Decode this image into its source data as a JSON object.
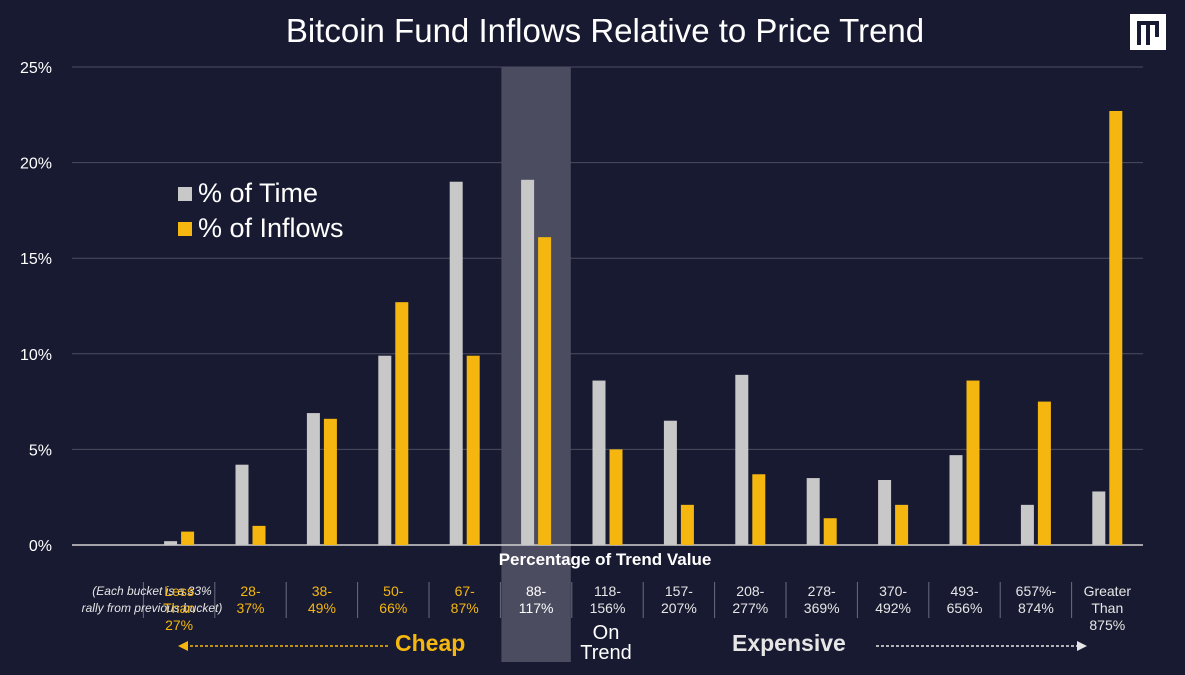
{
  "title": "Bitcoin Fund Inflows Relative to Price Trend",
  "chart_data": {
    "type": "bar",
    "title": "Bitcoin Fund Inflows Relative to Price Trend",
    "xlabel": "Percentage of Trend Value",
    "ylabel": "",
    "ylim": [
      0,
      25
    ],
    "yticks": [
      "0%",
      "5%",
      "10%",
      "15%",
      "20%",
      "25%"
    ],
    "grid": true,
    "legend_position": "upper-left",
    "categories": [
      "(Each bucket is a 33% rally from previous bucket)",
      "Less Than 27%",
      "28- 37%",
      "38- 49%",
      "50- 66%",
      "67- 87%",
      "88- 117%",
      "118- 156%",
      "157- 207%",
      "208- 277%",
      "278- 369%",
      "370- 492%",
      "493- 656%",
      "657%- 874%",
      "Greater Than 875%"
    ],
    "series": [
      {
        "name": "% of Time",
        "color": "#c8c8c8",
        "values": [
          0,
          0.2,
          4.2,
          6.9,
          9.9,
          19.0,
          19.1,
          8.6,
          6.5,
          8.9,
          3.5,
          3.4,
          4.7,
          2.1,
          2.8
        ]
      },
      {
        "name": "% of Inflows",
        "color": "#f5b70f",
        "values": [
          0,
          0.7,
          1.0,
          6.6,
          12.7,
          9.9,
          16.1,
          5.0,
          2.1,
          3.7,
          1.4,
          2.1,
          8.6,
          7.5,
          22.7
        ]
      }
    ],
    "highlight_category": "88- 117%",
    "annotations": [
      "Cheap",
      "On Trend",
      "Expensive"
    ]
  },
  "axis": {
    "note_line1": "(Each bucket is a 33%",
    "note_line2": "rally from previous bucket)"
  },
  "labels": [
    {
      "text": "Less\nThan 27%",
      "tone": "cheap"
    },
    {
      "text": "28-\n37%",
      "tone": "cheap"
    },
    {
      "text": "38-\n49%",
      "tone": "cheap"
    },
    {
      "text": "50-\n66%",
      "tone": "cheap"
    },
    {
      "text": "67-\n87%",
      "tone": "cheap"
    },
    {
      "text": "88-\n117%",
      "tone": "ontrend"
    },
    {
      "text": "118-\n156%",
      "tone": "neutral"
    },
    {
      "text": "157-\n207%",
      "tone": "neutral"
    },
    {
      "text": "208-\n277%",
      "tone": "neutral"
    },
    {
      "text": "278-\n369%",
      "tone": "neutral"
    },
    {
      "text": "370-\n492%",
      "tone": "neutral"
    },
    {
      "text": "493-\n656%",
      "tone": "neutral"
    },
    {
      "text": "657%-\n874%",
      "tone": "neutral"
    },
    {
      "text": "Greater\nThan 875%",
      "tone": "neutral"
    }
  ],
  "zones": {
    "cheap": "Cheap",
    "expensive": "Expensive",
    "on_trend": "On\nTrend"
  },
  "colors": {
    "background": "#181a31",
    "time": "#c8c8c8",
    "inflows": "#f5b70f",
    "highlight": "#5c5e70"
  }
}
